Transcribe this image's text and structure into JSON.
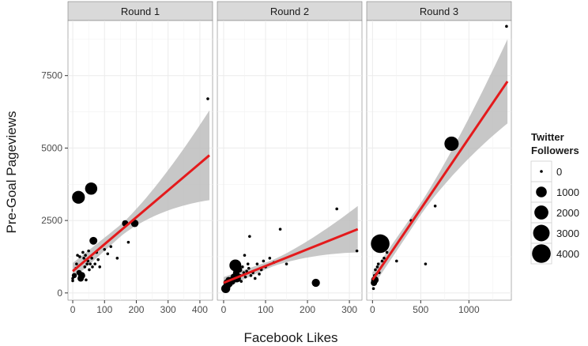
{
  "chart_data": {
    "type": "scatter",
    "xlabel": "Facebook Likes",
    "ylabel": "Pre-Goal Pageviews",
    "yticks": [
      0,
      2500,
      5000,
      7500
    ],
    "ylim": [
      -250,
      9400
    ],
    "legend": {
      "title_line1": "Twitter",
      "title_line2": "Followers",
      "placement": "right",
      "levels": [
        {
          "label": "0",
          "value": 0
        },
        {
          "label": "1000",
          "value": 1000
        },
        {
          "label": "2000",
          "value": 2000
        },
        {
          "label": "3000",
          "value": 3000
        },
        {
          "label": "4000",
          "value": 4000
        }
      ]
    },
    "colors": {
      "point": "#000000",
      "fit": "#e41a1c",
      "ribbon": "#bdbdbd",
      "strip_bg": "#d9d9d9",
      "grid": "#ebebeb"
    },
    "panels": [
      {
        "title": "Round 1",
        "xlim": [
          -15,
          440
        ],
        "xticks": [
          0,
          100,
          200,
          300,
          400
        ],
        "fit": {
          "x0": 0,
          "y0": 750,
          "x1": 430,
          "y1": 4750
        },
        "ribbon_half": {
          "at_start": 280,
          "at_mid": 200,
          "at_end": 1550
        },
        "points": [
          [
            0,
            500,
            0
          ],
          [
            0,
            420,
            0
          ],
          [
            5,
            600,
            80
          ],
          [
            10,
            850,
            0
          ],
          [
            12,
            1000,
            0
          ],
          [
            15,
            1300,
            0
          ],
          [
            18,
            3300,
            1600
          ],
          [
            20,
            700,
            100
          ],
          [
            22,
            1250,
            0
          ],
          [
            25,
            500,
            200
          ],
          [
            28,
            600,
            300
          ],
          [
            30,
            550,
            0
          ],
          [
            32,
            1400,
            0
          ],
          [
            35,
            1200,
            0
          ],
          [
            38,
            900,
            0
          ],
          [
            40,
            1300,
            0
          ],
          [
            42,
            450,
            0
          ],
          [
            45,
            1000,
            0
          ],
          [
            48,
            1100,
            0
          ],
          [
            50,
            1450,
            0
          ],
          [
            52,
            800,
            0
          ],
          [
            55,
            1000,
            0
          ],
          [
            58,
            3600,
            1400
          ],
          [
            60,
            1200,
            0
          ],
          [
            62,
            900,
            0
          ],
          [
            65,
            1800,
            400
          ],
          [
            70,
            1000,
            0
          ],
          [
            75,
            1400,
            0
          ],
          [
            80,
            1150,
            0
          ],
          [
            85,
            900,
            0
          ],
          [
            100,
            1500,
            0
          ],
          [
            110,
            1350,
            0
          ],
          [
            120,
            1600,
            0
          ],
          [
            140,
            1200,
            0
          ],
          [
            165,
            2400,
            200
          ],
          [
            175,
            1750,
            0
          ],
          [
            195,
            2400,
            350
          ],
          [
            425,
            6700,
            0
          ]
        ]
      },
      {
        "title": "Round 2",
        "xlim": [
          -15,
          330
        ],
        "xticks": [
          0,
          100,
          200,
          300
        ],
        "fit": {
          "x0": 0,
          "y0": 350,
          "x1": 320,
          "y1": 2200
        },
        "ribbon_half": {
          "at_start": 200,
          "at_mid": 110,
          "at_end": 800
        },
        "points": [
          [
            2,
            200,
            0
          ],
          [
            5,
            150,
            600
          ],
          [
            8,
            350,
            300
          ],
          [
            10,
            250,
            200
          ],
          [
            12,
            450,
            150
          ],
          [
            15,
            300,
            100
          ],
          [
            18,
            500,
            0
          ],
          [
            20,
            400,
            250
          ],
          [
            22,
            600,
            0
          ],
          [
            25,
            550,
            300
          ],
          [
            28,
            950,
            1300
          ],
          [
            30,
            700,
            200
          ],
          [
            32,
            500,
            400
          ],
          [
            35,
            650,
            0
          ],
          [
            38,
            800,
            100
          ],
          [
            40,
            600,
            0
          ],
          [
            42,
            400,
            0
          ],
          [
            45,
            900,
            0
          ],
          [
            48,
            700,
            0
          ],
          [
            50,
            1300,
            0
          ],
          [
            52,
            550,
            0
          ],
          [
            55,
            750,
            0
          ],
          [
            58,
            1000,
            0
          ],
          [
            60,
            850,
            0
          ],
          [
            62,
            1950,
            0
          ],
          [
            65,
            600,
            0
          ],
          [
            70,
            700,
            0
          ],
          [
            75,
            500,
            0
          ],
          [
            80,
            1000,
            0
          ],
          [
            85,
            650,
            0
          ],
          [
            90,
            800,
            0
          ],
          [
            95,
            1100,
            0
          ],
          [
            100,
            900,
            0
          ],
          [
            110,
            1200,
            0
          ],
          [
            120,
            1050,
            0
          ],
          [
            135,
            2200,
            0
          ],
          [
            150,
            1000,
            0
          ],
          [
            220,
            350,
            450
          ],
          [
            270,
            2900,
            0
          ],
          [
            318,
            1450,
            0
          ]
        ]
      },
      {
        "title": "Round 3",
        "xlim": [
          -60,
          1440
        ],
        "xticks": [
          0,
          500,
          1000
        ],
        "fit": {
          "x0": 0,
          "y0": 450,
          "x1": 1400,
          "y1": 7300
        },
        "ribbon_half": {
          "at_start": 250,
          "at_mid": 200,
          "at_end": 1450
        },
        "points": [
          [
            10,
            150,
            0
          ],
          [
            15,
            350,
            200
          ],
          [
            20,
            600,
            0
          ],
          [
            25,
            450,
            350
          ],
          [
            30,
            800,
            0
          ],
          [
            40,
            650,
            0
          ],
          [
            50,
            900,
            0
          ],
          [
            60,
            1000,
            0
          ],
          [
            70,
            700,
            0
          ],
          [
            80,
            1700,
            4000
          ],
          [
            100,
            1100,
            0
          ],
          [
            120,
            1200,
            0
          ],
          [
            150,
            1400,
            0
          ],
          [
            250,
            1100,
            0
          ],
          [
            400,
            2500,
            0
          ],
          [
            550,
            1000,
            0
          ],
          [
            650,
            3000,
            0
          ],
          [
            820,
            5150,
            2100
          ],
          [
            1390,
            9200,
            0
          ]
        ]
      }
    ]
  }
}
